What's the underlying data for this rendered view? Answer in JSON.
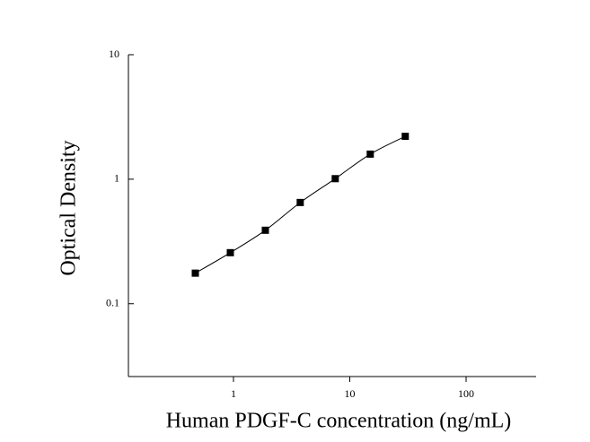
{
  "chart_data": {
    "type": "scatter",
    "x_label": "Human PDGF-C concentration (ng/mL)",
    "y_label": "Optical Density",
    "x_scale": "log",
    "y_scale": "log",
    "xlim": [
      0.125,
      400
    ],
    "ylim": [
      0.026,
      10
    ],
    "xticks": [
      1,
      10,
      100
    ],
    "yticks": [
      0.1,
      1,
      10
    ],
    "fit_curve": true,
    "series": [
      {
        "color": "#000000",
        "x": [
          0.47,
          0.94,
          1.88,
          3.75,
          7.5,
          15,
          30
        ],
        "values": [
          0.176,
          0.257,
          0.389,
          0.65,
          1.01,
          1.59,
          2.21
        ]
      }
    ]
  }
}
